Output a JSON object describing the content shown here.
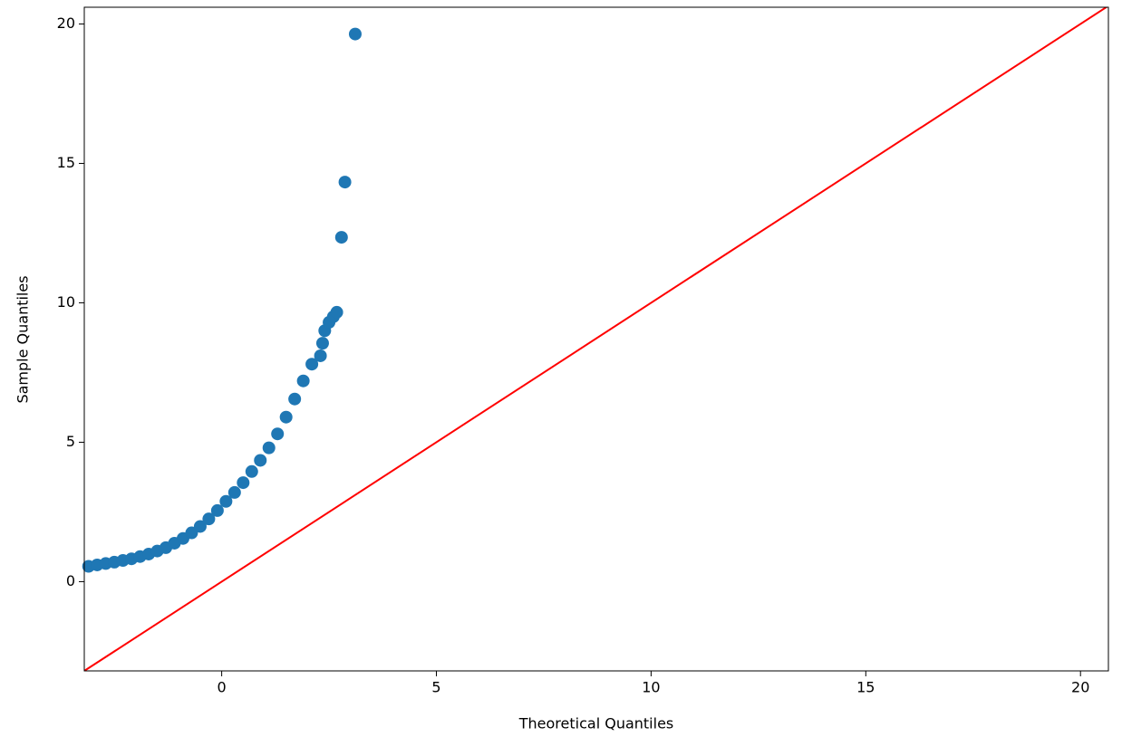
{
  "chart_data": {
    "type": "scatter",
    "x_label": "Theoretical Quantiles",
    "y_label": "Sample Quantiles",
    "xlim": [
      -3.2,
      20.65
    ],
    "ylim": [
      -3.2,
      20.6
    ],
    "xticks": [
      0,
      5,
      10,
      15,
      20
    ],
    "yticks": [
      0,
      5,
      10,
      15,
      20
    ],
    "series": [
      {
        "color": "#1f77b4",
        "x": [
          -3.1,
          -2.9,
          -2.7,
          -2.5,
          -2.3,
          -2.1,
          -1.9,
          -1.7,
          -1.5,
          -1.3,
          -1.1,
          -0.9,
          -0.7,
          -0.5,
          -0.3,
          -0.1,
          0.1,
          0.3,
          0.5,
          0.7,
          0.9,
          1.1,
          1.3,
          1.5,
          1.7,
          1.9,
          2.1,
          2.3,
          2.35,
          2.4,
          2.5,
          2.6,
          2.68,
          2.79,
          2.87,
          3.11
        ],
        "values": [
          0.55,
          0.6,
          0.65,
          0.7,
          0.76,
          0.82,
          0.9,
          0.99,
          1.1,
          1.22,
          1.38,
          1.55,
          1.75,
          1.98,
          2.25,
          2.55,
          2.88,
          3.2,
          3.55,
          3.95,
          4.35,
          4.8,
          5.3,
          5.9,
          6.55,
          7.2,
          7.8,
          8.1,
          8.55,
          9.0,
          9.3,
          9.5,
          9.66,
          12.35,
          14.33,
          19.64
        ]
      }
    ],
    "reference_line": {
      "color": "#ff0000",
      "x": [
        -3.2,
        20.65
      ],
      "y": [
        -3.2,
        20.65
      ]
    }
  }
}
